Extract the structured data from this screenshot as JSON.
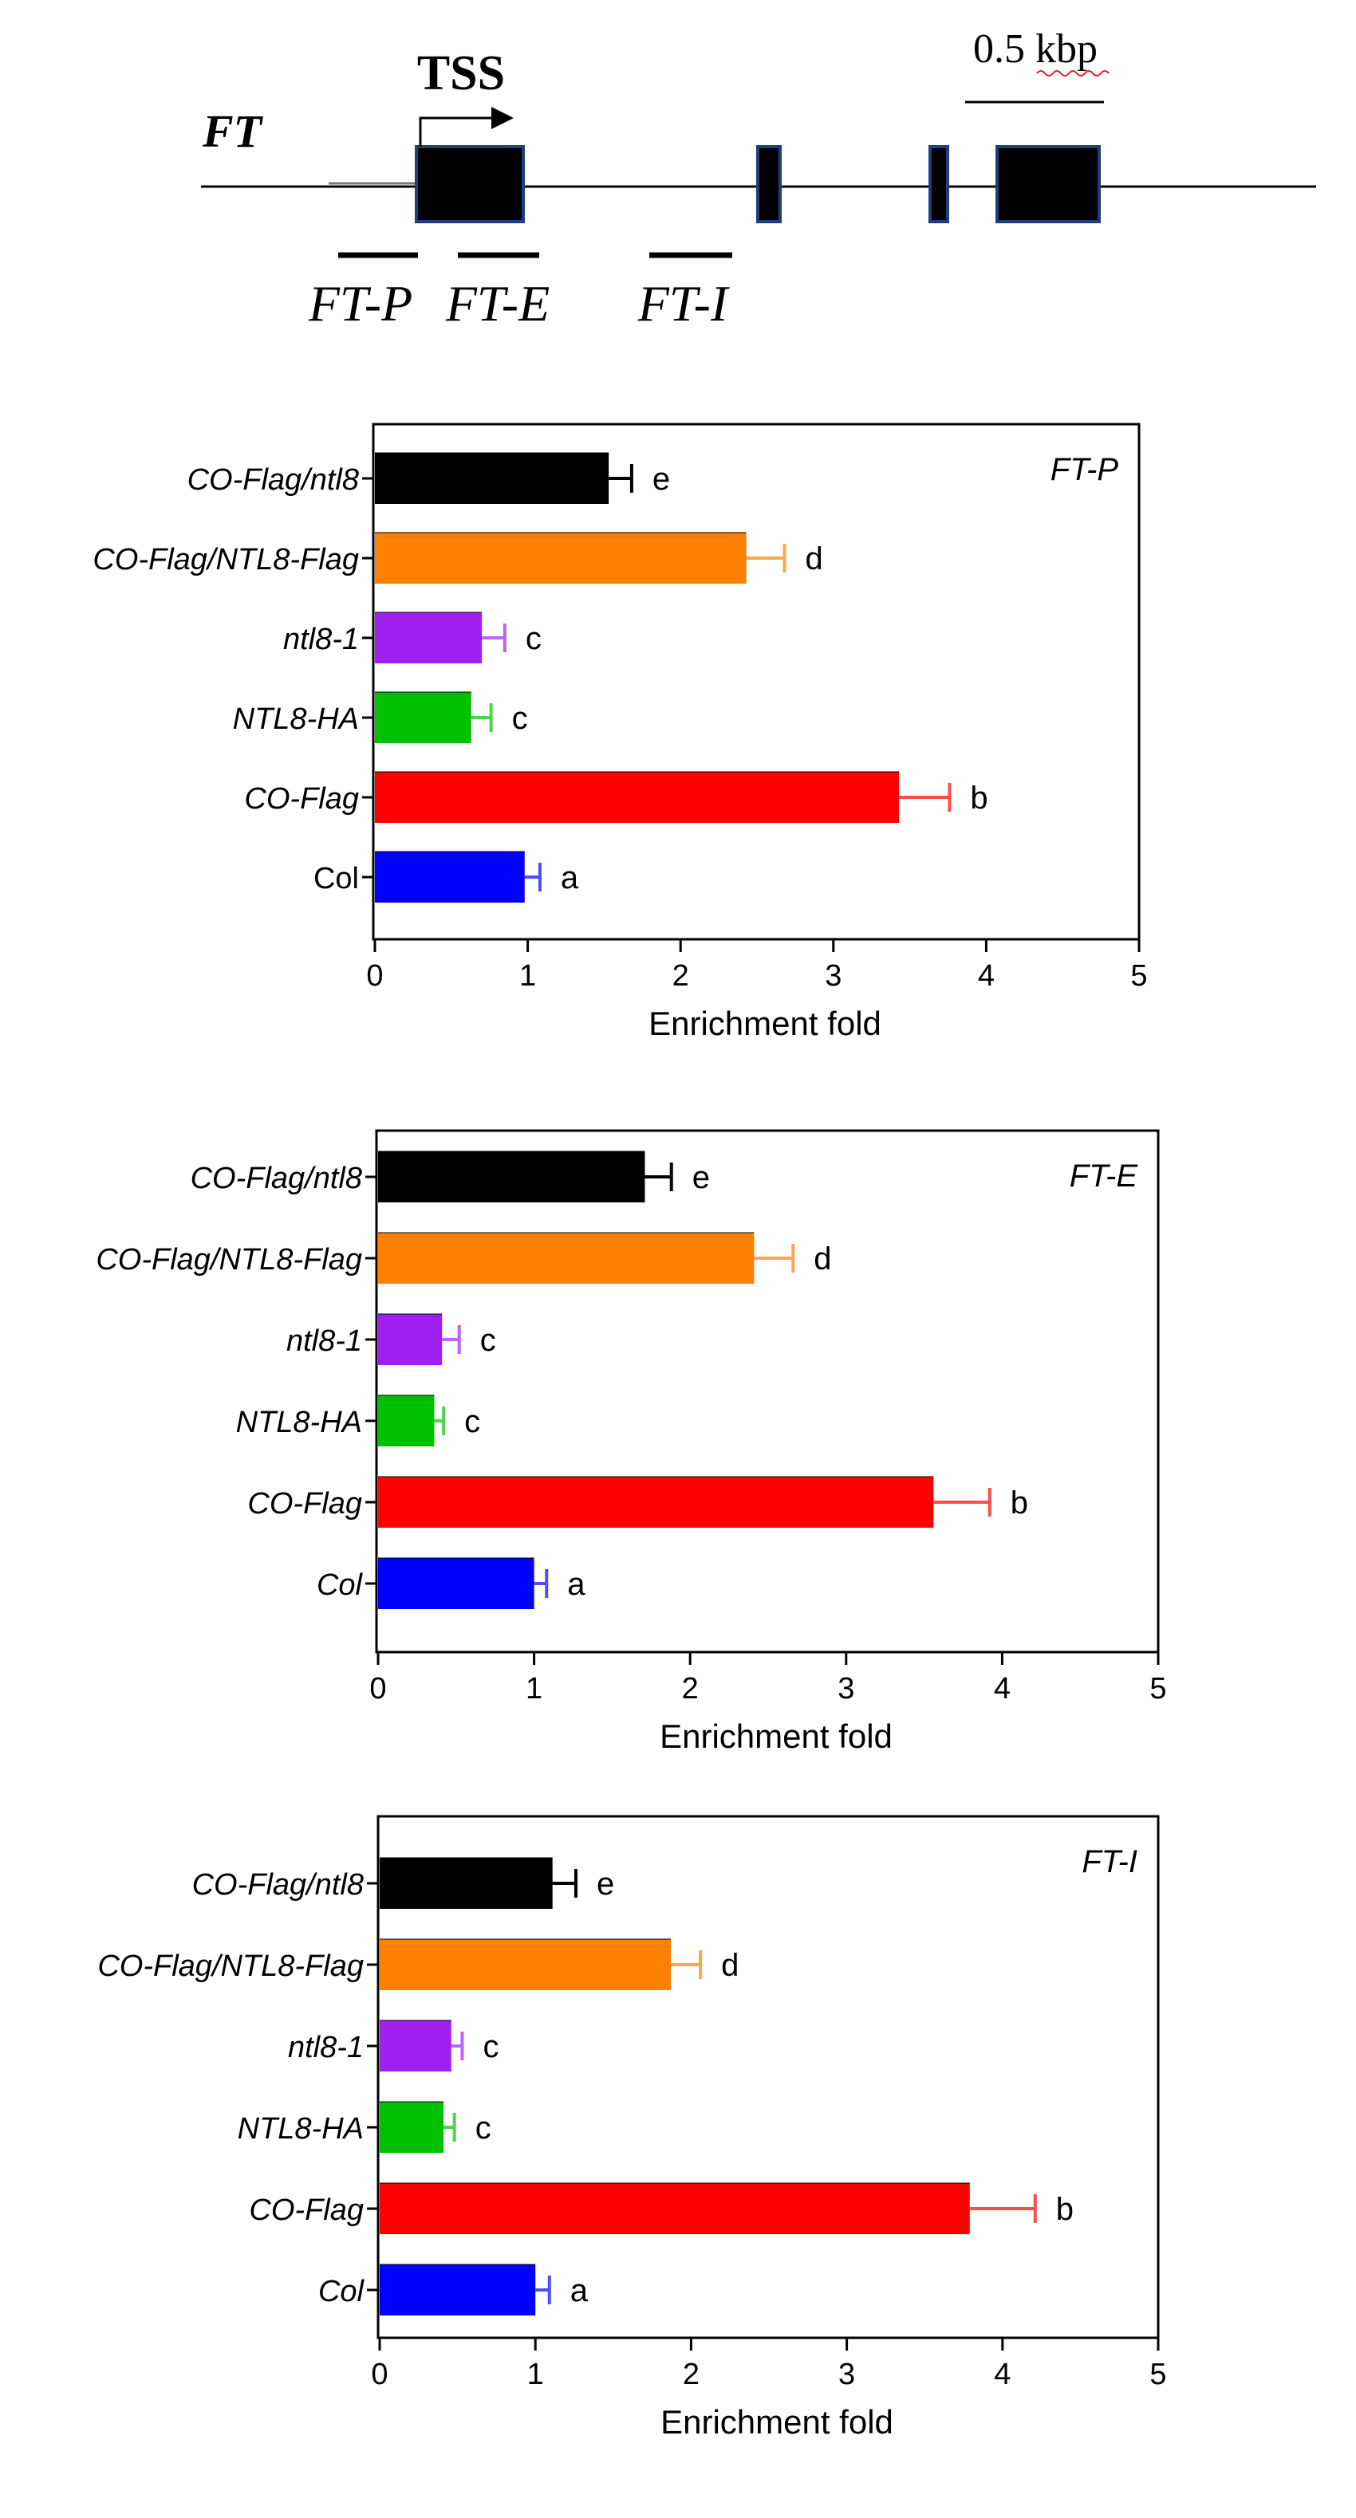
{
  "gene_diagram": {
    "gene_label": "FT",
    "tss_label": "TSS",
    "scale_label": "0.5 kbp",
    "region_labels": [
      "FT-P",
      "FT-E",
      "FT-I"
    ]
  },
  "colors": {
    "CO-Flag/ntl8": "#000000",
    "CO-Flag/NTL8-Flag": "#ff8000",
    "ntl8-1": "#a020f0",
    "NTL8-HA": "#00c000",
    "CO-Flag": "#ff0000",
    "Col": "#0000ff"
  },
  "chart_data": [
    {
      "type": "bar",
      "orientation": "horizontal",
      "title": "FT-P",
      "xlabel": "Enrichment fold",
      "xlim": [
        0,
        5
      ],
      "xticks": [
        "0",
        "1",
        "2",
        "3",
        "4",
        "5"
      ],
      "categories": [
        "CO-Flag/ntl8",
        "CO-Flag/NTL8-Flag",
        "ntl8-1",
        "NTL8-HA",
        "CO-Flag",
        "Col"
      ],
      "values": [
        1.53,
        2.43,
        0.7,
        0.63,
        3.43,
        0.98
      ],
      "errors": [
        0.15,
        0.25,
        0.15,
        0.13,
        0.33,
        0.1
      ],
      "significance": [
        "e",
        "d",
        "c",
        "c",
        "b",
        "a"
      ]
    },
    {
      "type": "bar",
      "orientation": "horizontal",
      "title": "FT-E",
      "xlabel": "Enrichment fold",
      "xlim": [
        0,
        5
      ],
      "xticks": [
        "0",
        "1",
        "2",
        "3",
        "4",
        "5"
      ],
      "categories": [
        "CO-Flag/ntl8",
        "CO-Flag/NTL8-Flag",
        "ntl8-1",
        "NTL8-HA",
        "CO-Flag",
        "Col"
      ],
      "values": [
        1.71,
        2.41,
        0.41,
        0.36,
        3.56,
        1.0
      ],
      "errors": [
        0.17,
        0.25,
        0.11,
        0.06,
        0.36,
        0.08
      ],
      "significance": [
        "e",
        "d",
        "c",
        "c",
        "b",
        "a"
      ]
    },
    {
      "type": "bar",
      "orientation": "horizontal",
      "title": "FT-I",
      "xlabel": "Enrichment fold",
      "xlim": [
        0,
        5
      ],
      "xticks": [
        "0",
        "1",
        "2",
        "3",
        "4",
        "5"
      ],
      "categories": [
        "CO-Flag/ntl8",
        "CO-Flag/NTL8-Flag",
        "ntl8-1",
        "NTL8-HA",
        "CO-Flag",
        "Col"
      ],
      "values": [
        1.11,
        1.87,
        0.46,
        0.41,
        3.79,
        1.0
      ],
      "errors": [
        0.15,
        0.19,
        0.07,
        0.07,
        0.42,
        0.09
      ],
      "significance": [
        "e",
        "d",
        "c",
        "c",
        "b",
        "a"
      ]
    }
  ]
}
